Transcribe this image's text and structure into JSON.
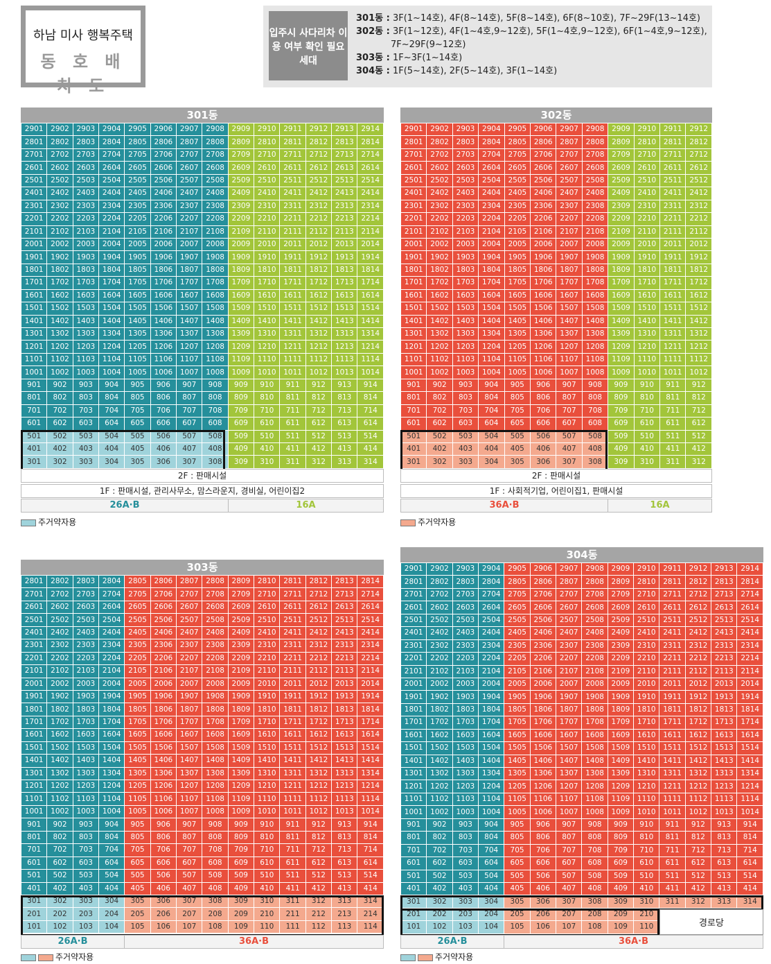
{
  "header": {
    "title": "하남 미사 행복주택",
    "subtitle": "동 호 배 치 도",
    "note_label": "입주시 사다리차 이용 여부 확인 필요 세대",
    "note_lines": [
      {
        "bld": "301동 :",
        "text": "3F(1~14호), 4F(8~14호), 5F(8~14호), 6F(8~10호), 7F~29F(13~14호)"
      },
      {
        "bld": "302동 :",
        "text": "3F(1~12호), 4F(1~4호,9~12호), 5F(1~4호,9~12호), 6F(1~4호,9~12호),"
      },
      {
        "bld": "",
        "text": "7F~29F(9~12호)"
      },
      {
        "bld": "303동 :",
        "text": "1F~3F(1~14호)"
      },
      {
        "bld": "304동 :",
        "text": "1F(5~14호), 2F(5~14호), 3F(1~14호)"
      }
    ]
  },
  "colors": {
    "teal": "#258f9b",
    "green": "#a2c53a",
    "red": "#e94f3c",
    "light_teal": "#9fd3db",
    "pink": "#f4a98e",
    "header_gray": "#a5a5a5"
  },
  "buildings": [
    {
      "id": "b301",
      "name": "301동",
      "floor_top": 29,
      "floor_bottom": 3,
      "units": 14,
      "info_rows": [
        "2F : 판매시설",
        "1F : 판매시설, 관리사무소, 맘스라운지, 경비실, 어린이집2"
      ],
      "types": [
        "26A·B",
        "16A"
      ],
      "legend": "주거약자용"
    },
    {
      "id": "b302",
      "name": "302동",
      "floor_top": 29,
      "floor_bottom": 3,
      "units": 12,
      "info_rows": [
        "2F : 판매시설",
        "1F : 사회적기업, 어린이집1, 판매시설"
      ],
      "types": [
        "36A·B",
        "16A"
      ],
      "legend": "주거약자용"
    },
    {
      "id": "b303",
      "name": "303동",
      "floor_top": 28,
      "floor_bottom": 1,
      "units": 14,
      "types": [
        "26A·B",
        "36A·B"
      ],
      "legend": "주거약자용"
    },
    {
      "id": "b304",
      "name": "304동",
      "floor_top": 29,
      "floor_bottom": 1,
      "units": 14,
      "types": [
        "26A·B",
        "36A·B"
      ],
      "legend": "주거약자용",
      "annex": "경로당"
    }
  ]
}
